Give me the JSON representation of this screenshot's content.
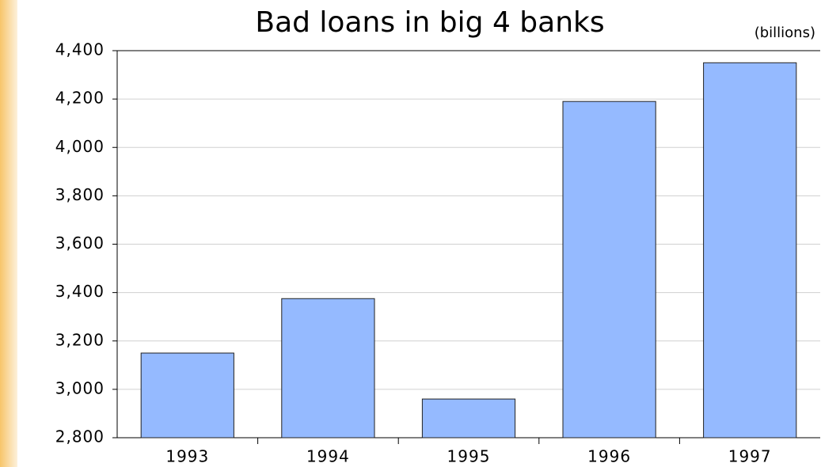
{
  "chart_data": {
    "type": "bar",
    "title": "Bad loans in big 4 banks",
    "subtitle": "(billions)",
    "categories": [
      "1993",
      "1994",
      "1995",
      "1996",
      "1997"
    ],
    "values": [
      3150,
      3375,
      2960,
      4190,
      4350
    ],
    "color": "#95baff",
    "ylim": [
      2800,
      4400
    ],
    "yticks": [
      {
        "value": 2800,
        "label": "2,800"
      },
      {
        "value": 3000,
        "label": "3,000"
      },
      {
        "value": 3200,
        "label": "3,200"
      },
      {
        "value": 3400,
        "label": "3,400"
      },
      {
        "value": 3600,
        "label": "3,600"
      },
      {
        "value": 3800,
        "label": "3,800"
      },
      {
        "value": 4000,
        "label": "4,000"
      },
      {
        "value": 4200,
        "label": "4,200"
      },
      {
        "value": 4400,
        "label": "4,400"
      }
    ],
    "grid": true
  }
}
